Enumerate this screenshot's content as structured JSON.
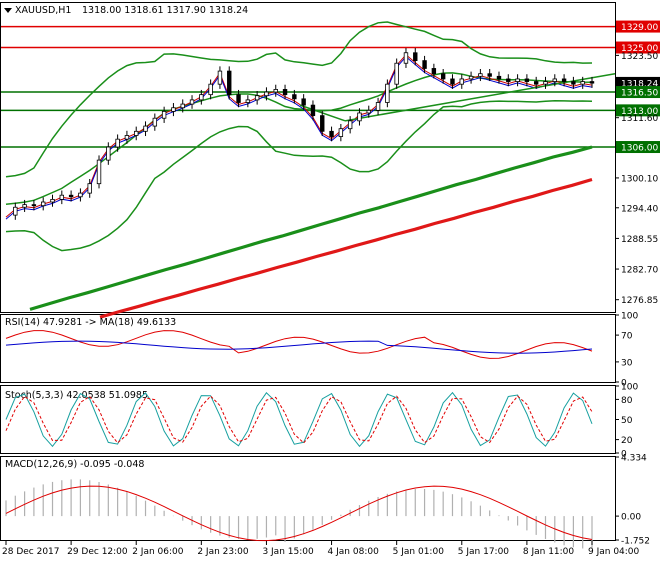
{
  "chart_data": [
    {
      "type": "candlestick",
      "panel": "price",
      "header": {
        "symbol_label": "XAUUSD,H1",
        "ohlc_text": "1318.00 1318.61 1317.90 1318.24"
      },
      "ylim": [
        1274.5,
        1333.5
      ],
      "y_ticks": [
        "1329.00",
        "1325.00",
        "1323.50",
        "1318.24",
        "1316.50",
        "1313.00",
        "1311.60",
        "1306.00",
        "1300.10",
        "1294.40",
        "1288.55",
        "1282.70",
        "1276.85"
      ],
      "highlighted_ticks": [
        "1329.00",
        "1325.00",
        "1318.24",
        "1316.50",
        "1313.00",
        "1306.00"
      ],
      "horizontal_levels": [
        {
          "value": 1329.0,
          "color": "#e00000"
        },
        {
          "value": 1325.0,
          "color": "#e00000"
        },
        {
          "value": 1316.5,
          "color": "#007000"
        },
        {
          "value": 1313.0,
          "color": "#007000"
        },
        {
          "value": 1306.0,
          "color": "#007000"
        }
      ],
      "current_price": 1318.24,
      "x_labels": [
        "28 Dec 2017",
        "29 Dec 12:00",
        "2 Jan 06:00",
        "2 Jan 23:00",
        "3 Jan 15:00",
        "4 Jan 08:00",
        "5 Jan 01:00",
        "5 Jan 17:00",
        "8 Jan 11:00",
        "9 Jan 04:00"
      ],
      "series": [
        {
          "name": "close",
          "color": "#000000",
          "values": [
            1293.0,
            1294.5,
            1295.0,
            1294.8,
            1295.5,
            1296.0,
            1296.8,
            1296.5,
            1297.2,
            1299.0,
            1303.5,
            1306.0,
            1307.5,
            1308.2,
            1309.0,
            1310.0,
            1311.5,
            1312.8,
            1313.5,
            1314.2,
            1315.0,
            1316.0,
            1318.0,
            1320.5,
            1316.0,
            1314.5,
            1315.0,
            1315.8,
            1316.5,
            1317.0,
            1316.0,
            1315.2,
            1314.0,
            1312.0,
            1309.0,
            1308.0,
            1309.5,
            1311.0,
            1312.5,
            1313.0,
            1314.5,
            1318.0,
            1322.0,
            1324.0,
            1322.5,
            1321.0,
            1320.0,
            1319.0,
            1318.0,
            1319.0,
            1319.5,
            1320.0,
            1319.5,
            1319.0,
            1318.5,
            1319.0,
            1318.5,
            1318.0,
            1318.5,
            1319.0,
            1318.5,
            1318.0,
            1318.5,
            1318.2
          ]
        },
        {
          "name": "ma_200",
          "color": "#1a8f1a",
          "values": [
            1275.0,
            1276.1,
            1277.2,
            1278.2,
            1279.3,
            1280.4,
            1281.5,
            1282.6,
            1283.6,
            1284.7,
            1285.8,
            1286.9,
            1288.0,
            1289.0,
            1290.1,
            1291.2,
            1292.3,
            1293.4,
            1294.4,
            1295.5,
            1296.6,
            1297.7,
            1298.8,
            1299.8,
            1300.9,
            1302.0,
            1303.0,
            1304.1,
            1305.0,
            1306.0
          ]
        },
        {
          "name": "ma_400",
          "color": "#e01818",
          "values": [
            1273.5,
            1274.6,
            1275.6,
            1276.7,
            1277.7,
            1278.8,
            1279.8,
            1280.9,
            1281.9,
            1283.0,
            1284.0,
            1285.1,
            1286.1,
            1287.2,
            1288.2,
            1289.3,
            1290.3,
            1291.4,
            1292.4,
            1293.5,
            1294.5,
            1295.6,
            1296.6,
            1297.7,
            1298.7,
            1299.8
          ]
        }
      ]
    },
    {
      "type": "line",
      "panel": "rsi",
      "header": {
        "label": "RSI(14) 47.9281 -> MA(18) 49.6133"
      },
      "ylim": [
        0,
        100
      ],
      "y_ticks": [
        "100",
        "70",
        "30",
        "0"
      ],
      "series": [
        {
          "name": "RSI(14)",
          "color": "#e00000"
        },
        {
          "name": "MA(18)",
          "color": "#0000cc"
        }
      ]
    },
    {
      "type": "line",
      "panel": "stochastic",
      "header": {
        "label": "Stoch(5,3,3) 42.0538 51.0985"
      },
      "ylim": [
        0,
        100
      ],
      "y_ticks": [
        "100",
        "80",
        "50",
        "20",
        "0"
      ],
      "series": [
        {
          "name": "%K",
          "color": "#17a0a0"
        },
        {
          "name": "%D",
          "color": "#e00000"
        }
      ]
    },
    {
      "type": "bar",
      "panel": "macd",
      "header": {
        "label": "MACD(12,26,9) -0.095 -0.048"
      },
      "ylim": [
        -1.752,
        4.334
      ],
      "y_ticks": [
        "4.334",
        "0.00",
        "-1.752"
      ],
      "series": [
        {
          "name": "histogram",
          "color": "#b0b0b0"
        },
        {
          "name": "signal",
          "color": "#e00000"
        }
      ]
    }
  ],
  "colors": {
    "candle_body": "#000000",
    "ma_fast": "#cc0000",
    "ma_slow": "#0000cc",
    "bollinger": "#1a8f1a",
    "trendline": "#1a8f1a",
    "level_red": "#e00000",
    "level_green": "#007000",
    "level_dark_label": "#000000"
  }
}
